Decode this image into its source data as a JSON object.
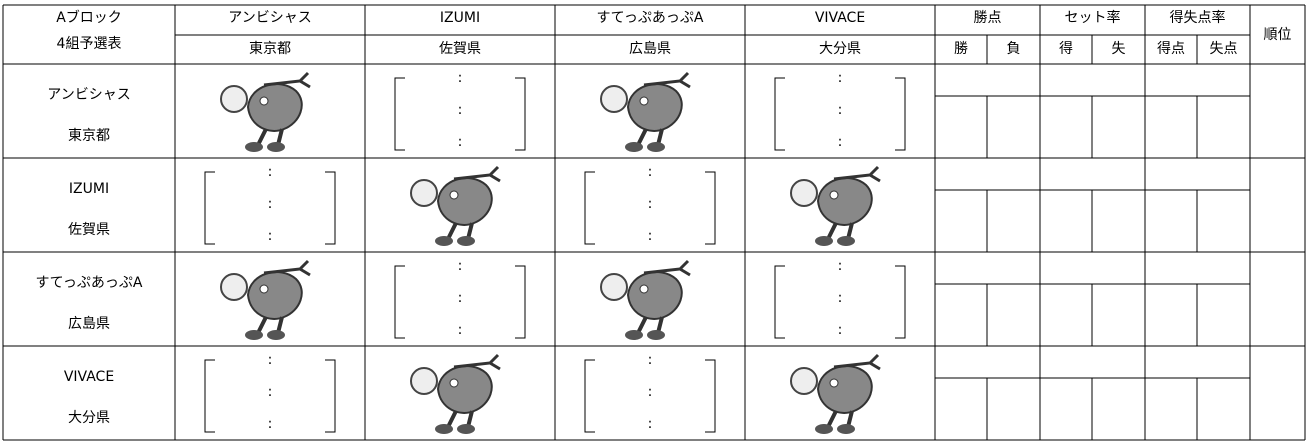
{
  "header": {
    "corner": [
      "Aブロック",
      "4組予選表"
    ],
    "teams": [
      {
        "name": "アンビシャス",
        "pref": "東京都"
      },
      {
        "name": "IZUMI",
        "pref": "佐賀県"
      },
      {
        "name": "すてっぷあっぷA",
        "pref": "広島県"
      },
      {
        "name": "VIVACE",
        "pref": "大分県"
      }
    ],
    "stats": [
      {
        "title": "勝点",
        "sub": [
          "勝",
          "負"
        ]
      },
      {
        "title": "セット率",
        "sub": [
          "得",
          "失"
        ]
      },
      {
        "title": "得失点率",
        "sub": [
          "得点",
          "失点"
        ]
      }
    ],
    "rank": "順位"
  },
  "table": {
    "rows": [
      {
        "name": "アンビシャス",
        "pref": "東京都",
        "results": [
          null,
          [
            ":",
            ":",
            ":"
          ],
          null,
          [
            ":",
            ":",
            ":"
          ]
        ]
      },
      {
        "name": "IZUMI",
        "pref": "佐賀県",
        "results": [
          [
            ":",
            ":",
            ":"
          ],
          null,
          [
            ":",
            ":",
            ":"
          ],
          null
        ]
      },
      {
        "name": "すてっぷあっぷA",
        "pref": "広島県",
        "results": [
          null,
          [
            ":",
            ":",
            ":"
          ],
          null,
          [
            ":",
            ":",
            ":"
          ]
        ]
      },
      {
        "name": "VIVACE",
        "pref": "大分県",
        "results": [
          [
            ":",
            ":",
            ":"
          ],
          null,
          [
            ":",
            ":",
            ":"
          ],
          null
        ]
      }
    ]
  }
}
